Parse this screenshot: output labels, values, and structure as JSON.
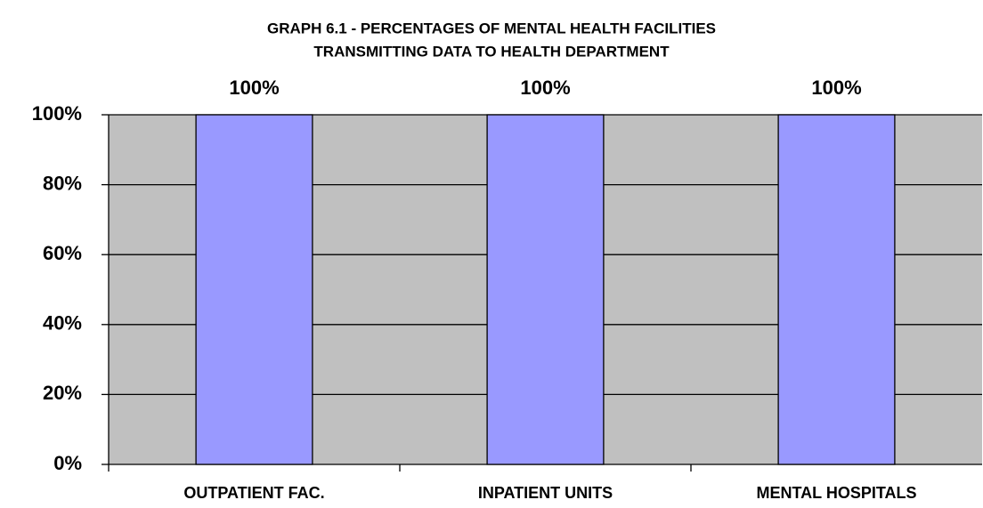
{
  "chart_data": {
    "type": "bar",
    "title": [
      "GRAPH 6.1 - PERCENTAGES OF MENTAL HEALTH FACILITIES",
      "TRANSMITTING DATA TO HEALTH DEPARTMENT"
    ],
    "categories": [
      "OUTPATIENT FAC.",
      "INPATIENT UNITS",
      "MENTAL HOSPITALS"
    ],
    "values": [
      100,
      100,
      100
    ],
    "value_labels": [
      "100%",
      "100%",
      "100%"
    ],
    "color": "#9999ff",
    "plot_background": "#c0c0c0",
    "ylim": [
      0,
      100
    ],
    "yticks": [
      {
        "value": 0,
        "label": "0%"
      },
      {
        "value": 20,
        "label": "20%"
      },
      {
        "value": 40,
        "label": "40%"
      },
      {
        "value": 60,
        "label": "60%"
      },
      {
        "value": 80,
        "label": "80%"
      },
      {
        "value": 100,
        "label": "100%"
      }
    ],
    "grid": true
  }
}
